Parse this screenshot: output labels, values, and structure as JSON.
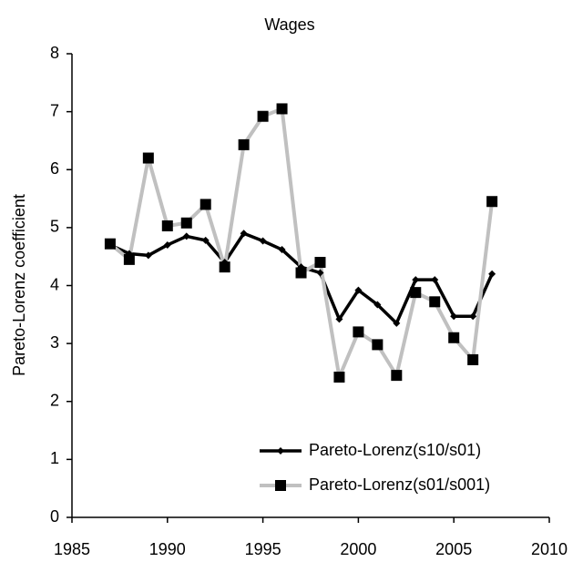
{
  "chart_data": {
    "type": "line",
    "title": "Wages",
    "y_label": "Pareto-Lorenz coefficient",
    "x": [
      1987,
      1988,
      1989,
      1990,
      1991,
      1992,
      1993,
      1994,
      1995,
      1996,
      1997,
      1998,
      1999,
      2000,
      2001,
      2002,
      2003,
      2004,
      2005,
      2006,
      2007
    ],
    "series": [
      {
        "name": "Pareto-Lorenz(s10/s01)",
        "color": "#000000",
        "marker": "diamond",
        "marker_color": "#000000",
        "values": [
          4.7,
          4.55,
          4.52,
          4.7,
          4.85,
          4.78,
          4.4,
          4.9,
          4.77,
          4.62,
          4.32,
          4.22,
          3.42,
          3.92,
          3.67,
          3.35,
          4.1,
          4.1,
          3.47,
          3.47,
          4.2
        ]
      },
      {
        "name": "Pareto-Lorenz(s01/s001)",
        "color": "#c0c0c0",
        "marker": "square",
        "marker_color": "#000000",
        "values": [
          4.72,
          4.45,
          6.2,
          5.03,
          5.08,
          5.4,
          4.32,
          6.43,
          6.92,
          7.05,
          4.22,
          4.4,
          2.42,
          3.2,
          2.98,
          2.45,
          3.88,
          3.72,
          3.1,
          2.72,
          5.45
        ]
      }
    ],
    "xlim": [
      1985,
      2010
    ],
    "xticks": [
      1985,
      1990,
      1995,
      2000,
      2005,
      2010
    ],
    "ylim": [
      0,
      8
    ],
    "yticks": [
      0,
      1,
      2,
      3,
      4,
      5,
      6,
      7,
      8
    ],
    "grid": false,
    "legend": "lower right"
  }
}
